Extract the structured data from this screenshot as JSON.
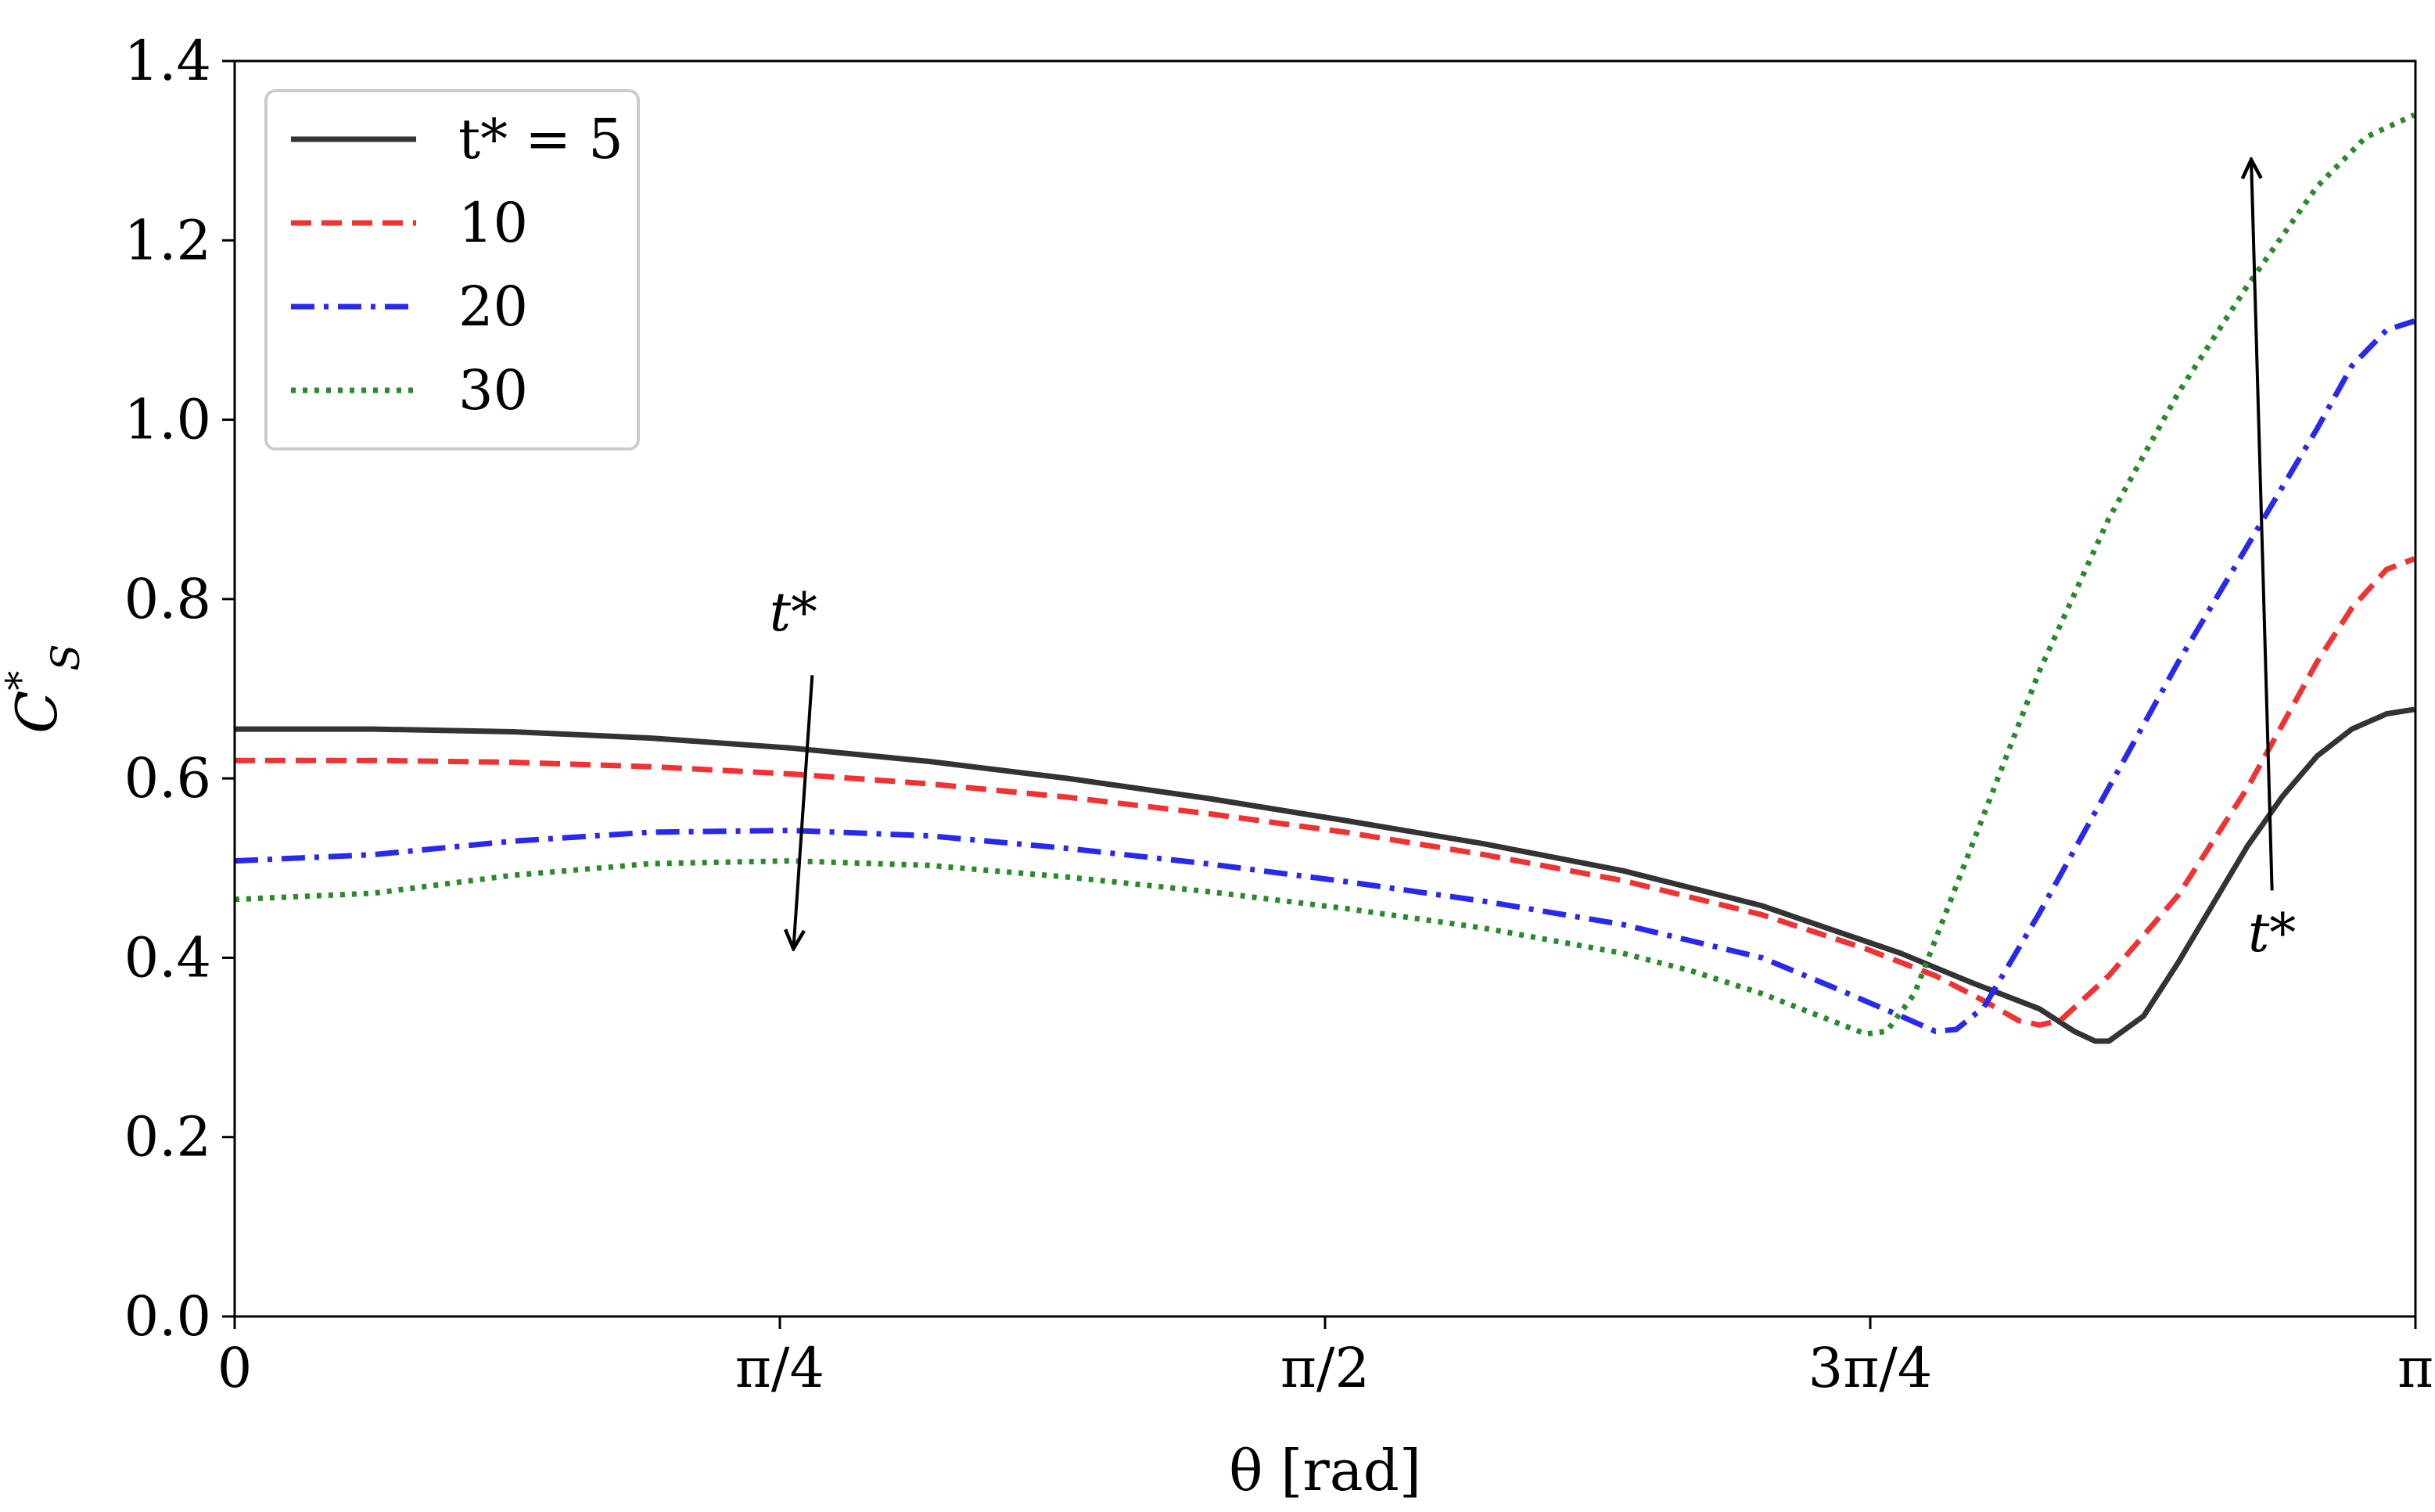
{
  "chart_data": {
    "type": "line",
    "title": "",
    "xlabel": "θ [rad]",
    "ylabel": "C*S",
    "ylabel_main": "C",
    "ylabel_sup": "*",
    "ylabel_sub": "S",
    "xlim": [
      0,
      3.14159
    ],
    "ylim": [
      0,
      1.4
    ],
    "grid": false,
    "legend_position": "top-left",
    "x_ticks": [
      {
        "value": 0,
        "label": "0"
      },
      {
        "value": 0.7854,
        "label": "π/4"
      },
      {
        "value": 1.5708,
        "label": "π/2"
      },
      {
        "value": 2.3562,
        "label": "3π/4"
      },
      {
        "value": 3.14159,
        "label": "π"
      }
    ],
    "y_ticks": [
      {
        "value": 0.0,
        "label": "0.0"
      },
      {
        "value": 0.2,
        "label": "0.2"
      },
      {
        "value": 0.4,
        "label": "0.4"
      },
      {
        "value": 0.6,
        "label": "0.6"
      },
      {
        "value": 0.8,
        "label": "0.8"
      },
      {
        "value": 1.0,
        "label": "1.0"
      },
      {
        "value": 1.2,
        "label": "1.2"
      },
      {
        "value": 1.4,
        "label": "1.4"
      }
    ],
    "series": [
      {
        "name": "t* = 5",
        "legend_label": "t* = 5",
        "color": "#333333",
        "dash": "solid",
        "points": [
          [
            0,
            0.655
          ],
          [
            0.2,
            0.655
          ],
          [
            0.4,
            0.652
          ],
          [
            0.6,
            0.645
          ],
          [
            0.8,
            0.634
          ],
          [
            1.0,
            0.619
          ],
          [
            1.2,
            0.6
          ],
          [
            1.4,
            0.578
          ],
          [
            1.6,
            0.553
          ],
          [
            1.8,
            0.527
          ],
          [
            2.0,
            0.497
          ],
          [
            2.2,
            0.458
          ],
          [
            2.4,
            0.405
          ],
          [
            2.5,
            0.373
          ],
          [
            2.6,
            0.343
          ],
          [
            2.65,
            0.318
          ],
          [
            2.68,
            0.307
          ],
          [
            2.7,
            0.307
          ],
          [
            2.75,
            0.335
          ],
          [
            2.8,
            0.395
          ],
          [
            2.85,
            0.46
          ],
          [
            2.9,
            0.525
          ],
          [
            2.95,
            0.58
          ],
          [
            3.0,
            0.625
          ],
          [
            3.05,
            0.655
          ],
          [
            3.1,
            0.672
          ],
          [
            3.14,
            0.677
          ]
        ]
      },
      {
        "name": "10",
        "legend_label": "10",
        "color": "#f03232",
        "dash": "dashed",
        "points": [
          [
            0,
            0.62
          ],
          [
            0.2,
            0.62
          ],
          [
            0.4,
            0.618
          ],
          [
            0.6,
            0.613
          ],
          [
            0.8,
            0.605
          ],
          [
            1.0,
            0.594
          ],
          [
            1.2,
            0.579
          ],
          [
            1.4,
            0.561
          ],
          [
            1.6,
            0.54
          ],
          [
            1.8,
            0.515
          ],
          [
            2.0,
            0.486
          ],
          [
            2.2,
            0.448
          ],
          [
            2.35,
            0.41
          ],
          [
            2.45,
            0.38
          ],
          [
            2.52,
            0.352
          ],
          [
            2.57,
            0.33
          ],
          [
            2.6,
            0.325
          ],
          [
            2.63,
            0.33
          ],
          [
            2.7,
            0.38
          ],
          [
            2.8,
            0.47
          ],
          [
            2.9,
            0.59
          ],
          [
            3.0,
            0.73
          ],
          [
            3.05,
            0.79
          ],
          [
            3.1,
            0.833
          ],
          [
            3.14,
            0.845
          ]
        ]
      },
      {
        "name": "20",
        "legend_label": "20",
        "color": "#2828ee",
        "dash": "dashdot",
        "points": [
          [
            0,
            0.508
          ],
          [
            0.2,
            0.515
          ],
          [
            0.4,
            0.53
          ],
          [
            0.6,
            0.54
          ],
          [
            0.8,
            0.542
          ],
          [
            1.0,
            0.536
          ],
          [
            1.2,
            0.522
          ],
          [
            1.4,
            0.505
          ],
          [
            1.6,
            0.485
          ],
          [
            1.8,
            0.463
          ],
          [
            2.0,
            0.437
          ],
          [
            2.2,
            0.4
          ],
          [
            2.3,
            0.368
          ],
          [
            2.4,
            0.335
          ],
          [
            2.45,
            0.318
          ],
          [
            2.48,
            0.32
          ],
          [
            2.52,
            0.345
          ],
          [
            2.6,
            0.45
          ],
          [
            2.7,
            0.59
          ],
          [
            2.8,
            0.73
          ],
          [
            2.9,
            0.86
          ],
          [
            3.0,
            0.99
          ],
          [
            3.05,
            1.06
          ],
          [
            3.1,
            1.1
          ],
          [
            3.14,
            1.11
          ]
        ]
      },
      {
        "name": "30",
        "legend_label": "30",
        "color": "#2a8a2a",
        "dash": "dotted",
        "points": [
          [
            0,
            0.465
          ],
          [
            0.2,
            0.472
          ],
          [
            0.4,
            0.492
          ],
          [
            0.6,
            0.505
          ],
          [
            0.8,
            0.508
          ],
          [
            1.0,
            0.503
          ],
          [
            1.2,
            0.49
          ],
          [
            1.4,
            0.474
          ],
          [
            1.6,
            0.455
          ],
          [
            1.8,
            0.433
          ],
          [
            2.0,
            0.405
          ],
          [
            2.1,
            0.385
          ],
          [
            2.2,
            0.36
          ],
          [
            2.3,
            0.33
          ],
          [
            2.35,
            0.315
          ],
          [
            2.38,
            0.318
          ],
          [
            2.42,
            0.36
          ],
          [
            2.5,
            0.52
          ],
          [
            2.6,
            0.72
          ],
          [
            2.7,
            0.89
          ],
          [
            2.8,
            1.03
          ],
          [
            2.9,
            1.15
          ],
          [
            3.0,
            1.26
          ],
          [
            3.07,
            1.315
          ],
          [
            3.14,
            1.34
          ]
        ]
      }
    ],
    "annotations": [
      {
        "text": "t*",
        "arrow_from": [
          0.832,
          0.715
        ],
        "arrow_to": [
          0.805,
          0.41
        ],
        "label_at": [
          0.805,
          0.765
        ],
        "direction": "down"
      },
      {
        "text": "t*",
        "arrow_from": [
          2.935,
          0.475
        ],
        "arrow_to": [
          2.905,
          1.29
        ],
        "label_at": [
          2.935,
          0.425
        ],
        "direction": "up"
      }
    ]
  }
}
